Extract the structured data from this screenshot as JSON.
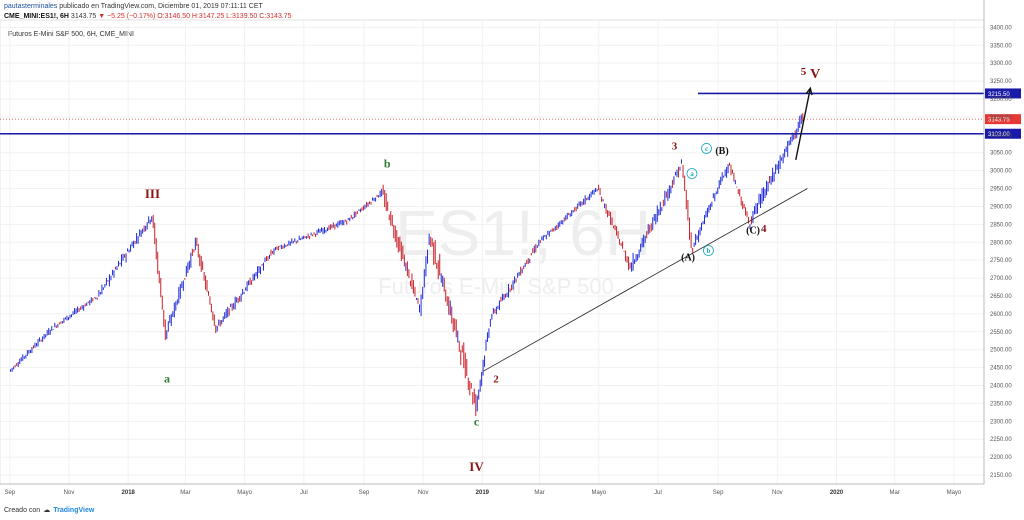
{
  "header": {
    "user": "pautasterminales",
    "published": "publicado en TradingView.com, Diciembre 01, 2019 07:11:11 CET",
    "symbol": "CME_MINI:ES1!, 6H",
    "last": "3143.75",
    "arrow": "▼",
    "change": "−5.25 (−0.17%)",
    "ohlc": "O:3146.50  H:3147.25  L:3139.50  C:3143.75"
  },
  "subtitle": "Futuros E-Mini S&P 500, 6H, CME_MINI",
  "watermark": {
    "symbol": "ES1!, 6H",
    "name": "Futuros E-Mini S&P 500"
  },
  "footer": {
    "text": "Creado con",
    "brand": "TradingView"
  },
  "colors": {
    "bull": "#1f2bd6",
    "bear": "#c8202a",
    "hline": "#1a1aa8",
    "price": "#e53935",
    "wave_red": "#8b1414",
    "wave_green": "#2e7d32",
    "wave_cyan": "#17a7c4"
  },
  "chart_data": {
    "type": "line",
    "x_axis_labels": [
      "Sep",
      "Nov",
      "2018",
      "Mar",
      "Mayo",
      "Jul",
      "Sep",
      "Nov",
      "2019",
      "Mar",
      "Mayo",
      "Jul",
      "Sep",
      "Nov",
      "2020",
      "Mar",
      "Mayo"
    ],
    "y_axis_labels": [
      "3400.00",
      "3350.00",
      "3300.00",
      "3250.00",
      "3200.00",
      "3150.00",
      "3100.00",
      "3050.00",
      "3000.00",
      "2950.00",
      "2900.00",
      "2850.00",
      "2800.00",
      "2750.00",
      "2700.00",
      "2650.00",
      "2600.00",
      "2550.00",
      "2500.00",
      "2450.00",
      "2400.00",
      "2350.00",
      "2300.00",
      "2250.00",
      "2200.00",
      "2150.00"
    ],
    "ylim": [
      2125,
      3415
    ],
    "series": [
      {
        "x": [
          "2017-09-01",
          "2017-10-15",
          "2017-12-01",
          "2018-01-26",
          "2018-02-09",
          "2018-03-12",
          "2018-04-02",
          "2018-06-01",
          "2018-08-15",
          "2018-09-20",
          "2018-10-29",
          "2018-11-08",
          "2018-12-26",
          "2019-01-10",
          "2019-03-01",
          "2019-04-30",
          "2019-06-03",
          "2019-07-26",
          "2019-08-05",
          "2019-09-12",
          "2019-10-03",
          "2019-11-28"
        ],
        "values": [
          2440,
          2560,
          2650,
          2875,
          2540,
          2800,
          2560,
          2780,
          2860,
          2940,
          2610,
          2820,
          2340,
          2590,
          2800,
          2950,
          2730,
          3020,
          2780,
          3020,
          2855,
          3150
        ]
      }
    ],
    "horizontal_lines": [
      {
        "value": 3215.5,
        "label": "3215.50"
      },
      {
        "value": 3103.0,
        "label": "3103.00"
      },
      {
        "value": 3143.75,
        "label": "3143.75",
        "style": "dotted"
      }
    ],
    "trendline": {
      "from": [
        "2019-01-02",
        2440
      ],
      "to": [
        "2019-12-02",
        2950
      ]
    },
    "arrow": {
      "from": [
        "2019-11-20",
        3030
      ],
      "to": [
        "2019-12-05",
        3230
      ]
    },
    "annotations": [
      {
        "text": "III",
        "x": "2018-01-26",
        "y": 2935
      },
      {
        "text": "a",
        "x": "2018-02-10",
        "y": 2420
      },
      {
        "text": "b",
        "x": "2018-09-25",
        "y": 3020
      },
      {
        "text": "c",
        "x": "2018-12-26",
        "y": 2300
      },
      {
        "text": "2",
        "x": "2019-01-15",
        "y": 2420
      },
      {
        "text": "IV",
        "x": "2018-12-26",
        "y": 2172
      },
      {
        "text": "3",
        "x": "2019-07-18",
        "y": 3070
      },
      {
        "text": "a",
        "x": "2019-08-05",
        "y": 2985
      },
      {
        "text": "c",
        "x": "2019-08-20",
        "y": 3055
      },
      {
        "text": "(B)",
        "x": "2019-09-05",
        "y": 3058
      },
      {
        "text": "(A)",
        "x": "2019-08-01",
        "y": 2760
      },
      {
        "text": "b",
        "x": "2019-08-22",
        "y": 2770
      },
      {
        "text": "(C)",
        "x": "2019-10-07",
        "y": 2835
      },
      {
        "text": "4",
        "x": "2019-10-18",
        "y": 2840
      },
      {
        "text": "5",
        "x": "2019-11-28",
        "y": 3278
      },
      {
        "text": "V",
        "x": "2019-12-10",
        "y": 3270
      }
    ]
  }
}
